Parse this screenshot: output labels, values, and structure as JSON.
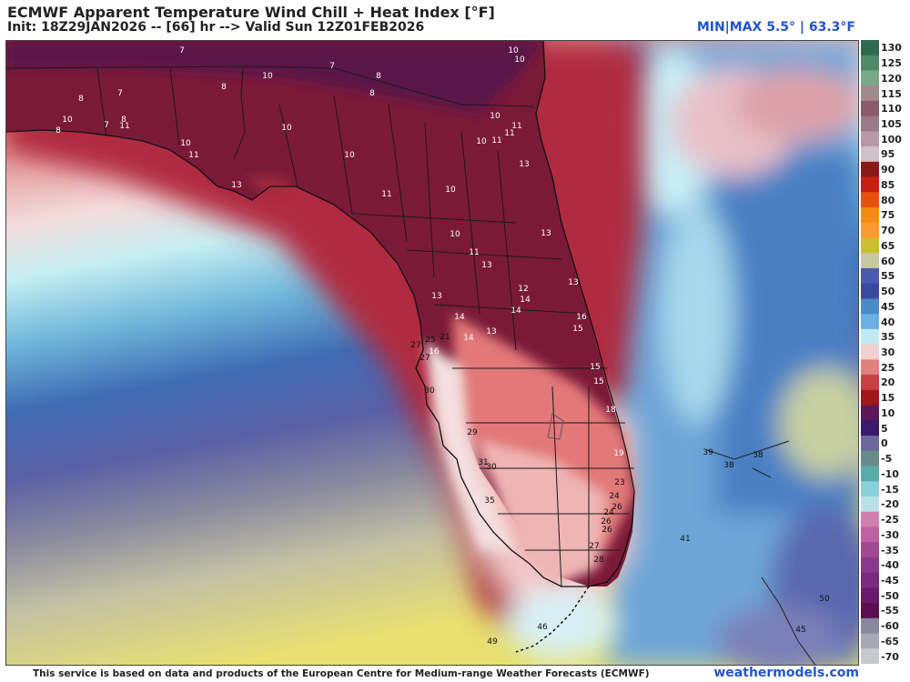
{
  "header": {
    "title": "ECMWF Apparent Temperature Wind Chill + Heat Index [°F]",
    "subtitle": "Init: 18Z29JAN2026 -- [66] hr --> Valid Sun 12Z01FEB2026",
    "minmax": "MIN|MAX 5.5° | 63.3°F"
  },
  "footer": {
    "credit": "This service is based on data and products of the European Centre for Medium-range Weather Forecasts (ECMWF)",
    "brand": "weathermodels.com"
  },
  "colorbar": {
    "labels": [
      "130",
      "125",
      "120",
      "115",
      "110",
      "105",
      "100",
      "95",
      "90",
      "85",
      "80",
      "75",
      "70",
      "65",
      "60",
      "55",
      "50",
      "45",
      "40",
      "35",
      "30",
      "25",
      "20",
      "15",
      "10",
      "5",
      "0",
      "-5",
      "-10",
      "-15",
      "-20",
      "-25",
      "-30",
      "-35",
      "-40",
      "-45",
      "-50",
      "-55",
      "-60",
      "-65",
      "-70"
    ],
    "colors": [
      "#2e6a4e",
      "#4f8a66",
      "#7aa88a",
      "#a08a8c",
      "#8c5a6a",
      "#9a7a88",
      "#b89aa6",
      "#d0c0c8",
      "#8a1a1a",
      "#c82010",
      "#e85010",
      "#f48c10",
      "#ff9a30",
      "#c8c030",
      "#c8c8a0",
      "#4a5ab0",
      "#3a4aa0",
      "#4a8ac8",
      "#6ab0e0",
      "#c0e8f0",
      "#f0d0d0",
      "#e08080",
      "#c84040",
      "#a01818",
      "#5a1a5a",
      "#3a1a6a",
      "#6a6a9a",
      "#6a8a8a",
      "#5aaaaa",
      "#8ad0d8",
      "#b8e0e8",
      "#d080b0",
      "#c060a0",
      "#a04890",
      "#8a3a8a",
      "#7a2a7a",
      "#6a1a6a",
      "#5a1050",
      "#8888a0",
      "#a8a8b8",
      "#c8c8d0"
    ]
  },
  "labels": [
    {
      "v": "7"
    },
    {
      "v": "8"
    },
    {
      "v": "10"
    },
    {
      "v": "10"
    },
    {
      "v": "7"
    },
    {
      "v": "8"
    },
    {
      "v": "10"
    },
    {
      "v": "7"
    },
    {
      "v": "8"
    },
    {
      "v": "8"
    },
    {
      "v": "8"
    },
    {
      "v": "7"
    },
    {
      "v": "10"
    },
    {
      "v": "8"
    },
    {
      "v": "11"
    },
    {
      "v": "10"
    },
    {
      "v": "10"
    },
    {
      "v": "11"
    },
    {
      "v": "10"
    },
    {
      "v": "11"
    },
    {
      "v": "10"
    },
    {
      "v": "10"
    },
    {
      "v": "11"
    },
    {
      "v": "11"
    },
    {
      "v": "13"
    },
    {
      "v": "13"
    },
    {
      "v": "10"
    },
    {
      "v": "11"
    },
    {
      "v": "13"
    },
    {
      "v": "10"
    },
    {
      "v": "11"
    },
    {
      "v": "13"
    },
    {
      "v": "13"
    },
    {
      "v": "12"
    },
    {
      "v": "14"
    },
    {
      "v": "13"
    },
    {
      "v": "14"
    },
    {
      "v": "14"
    },
    {
      "v": "16"
    },
    {
      "v": "13"
    },
    {
      "v": "15"
    },
    {
      "v": "25"
    },
    {
      "v": "21"
    },
    {
      "v": "27"
    },
    {
      "v": "16"
    },
    {
      "v": "14"
    },
    {
      "v": "27"
    },
    {
      "v": "15"
    },
    {
      "v": "15"
    },
    {
      "v": "30"
    },
    {
      "v": "18"
    },
    {
      "v": "29"
    },
    {
      "v": "19"
    },
    {
      "v": "31"
    },
    {
      "v": "30"
    },
    {
      "v": "23"
    },
    {
      "v": "24"
    },
    {
      "v": "35"
    },
    {
      "v": "26"
    },
    {
      "v": "24"
    },
    {
      "v": "26"
    },
    {
      "v": "26"
    },
    {
      "v": "27"
    },
    {
      "v": "28"
    },
    {
      "v": "41"
    },
    {
      "v": "39"
    },
    {
      "v": "38"
    },
    {
      "v": "38"
    },
    {
      "v": "50"
    },
    {
      "v": "46"
    },
    {
      "v": "49"
    },
    {
      "v": "45"
    }
  ]
}
